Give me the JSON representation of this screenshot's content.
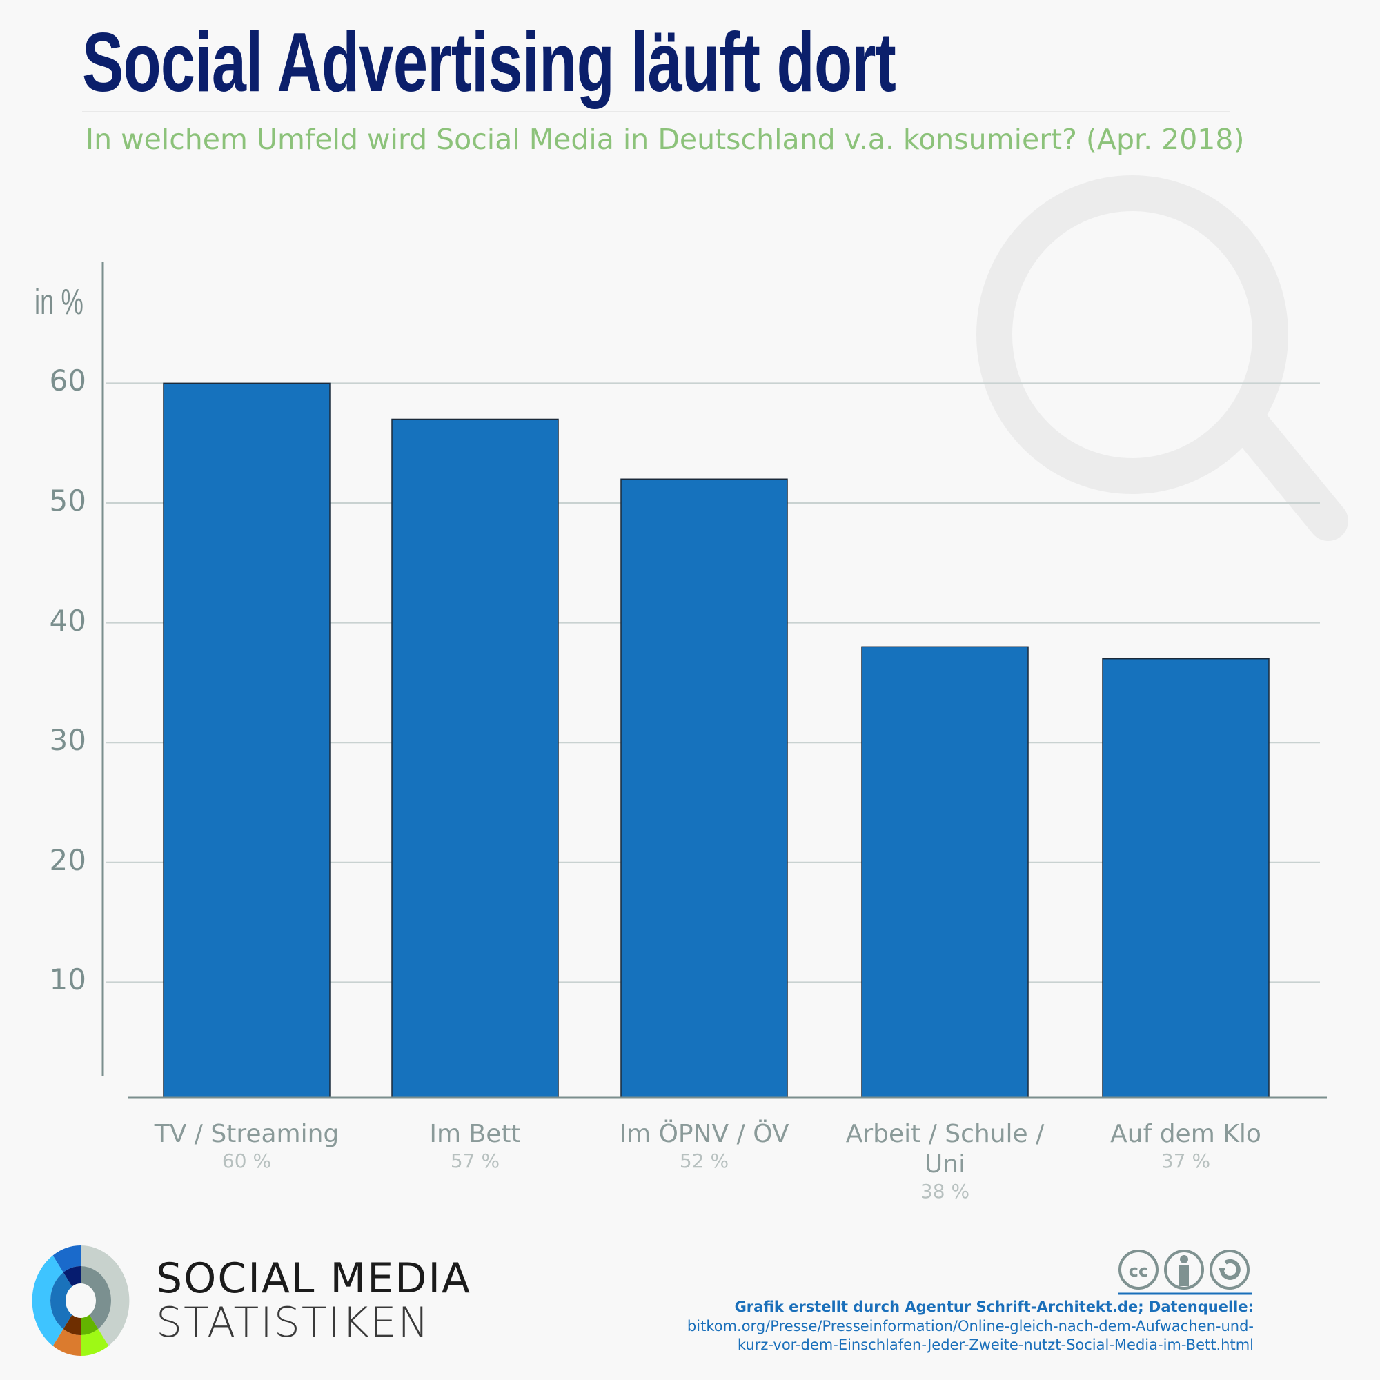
{
  "title": "Social Advertising läuft dort",
  "subtitle": "In welchem Umfeld wird Social Media in Deutschland v.a. konsumiert? (Apr. 2018)",
  "colors": {
    "bar": "#1672bd",
    "title": "#0b1f6b",
    "subtitle": "#8cc27a",
    "axis": "#7b8f8e"
  },
  "chart_data": {
    "type": "bar",
    "title": "Social Advertising läuft dort",
    "ylabel": "in %",
    "ylim": [
      0,
      66
    ],
    "yticks": [
      "10",
      "20",
      "30",
      "40",
      "50",
      "60"
    ],
    "ytick_values": [
      10,
      20,
      30,
      40,
      50,
      60
    ],
    "grid": true,
    "categories": [
      "TV / Streaming",
      "Im Bett",
      "Im ÖPNV / ÖV",
      "Arbeit / Schule / Uni",
      "Auf dem Klo"
    ],
    "category_lines": [
      [
        "TV / Streaming"
      ],
      [
        "Im Bett"
      ],
      [
        "Im ÖPNV / ÖV"
      ],
      [
        "Arbeit / Schule /",
        "Uni"
      ],
      [
        "Auf dem Klo"
      ]
    ],
    "values": [
      60,
      57,
      52,
      38,
      37
    ],
    "data_labels": [
      "60 %",
      "57 %",
      "52 %",
      "38 %",
      "37 %"
    ]
  },
  "footer": {
    "logo_line1": "SOCIAL MEDIA",
    "logo_line2": "STATISTIKEN",
    "license_icons": [
      "cc-icon",
      "attribution-icon",
      "share-alike-icon"
    ],
    "license_text": "cc",
    "credit": "Grafik erstellt durch Agentur Schrift-Architekt.de; Datenquelle:",
    "source_line1": "bitkom.org/Presse/Presseinformation/Online-gleich-nach-dem-Aufwachen-und-",
    "source_line2": "kurz-vor-dem-Einschlafen-Jeder-Zweite-nutzt-Social-Media-im-Bett.html"
  }
}
